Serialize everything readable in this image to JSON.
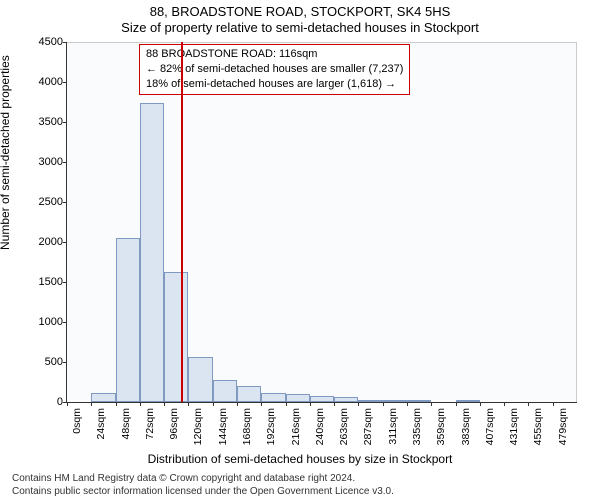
{
  "chart": {
    "type": "histogram",
    "title": "88, BROADSTONE ROAD, STOCKPORT, SK4 5HS",
    "subtitle": "Size of property relative to semi-detached houses in Stockport",
    "ylabel": "Number of semi-detached properties",
    "xlabel": "Distribution of semi-detached houses by size in Stockport",
    "background_color": "#fafbfd",
    "bar_fill": "#dbe5f1",
    "bar_border": "#7f99c1",
    "marker_line_color": "#cc0000",
    "marker_x_index": 4.7,
    "ylim": [
      0,
      4500
    ],
    "ytick_step": 500,
    "x_categories": [
      "0sqm",
      "24sqm",
      "48sqm",
      "72sqm",
      "96sqm",
      "120sqm",
      "144sqm",
      "168sqm",
      "192sqm",
      "216sqm",
      "240sqm",
      "263sqm",
      "287sqm",
      "311sqm",
      "335sqm",
      "359sqm",
      "383sqm",
      "407sqm",
      "431sqm",
      "455sqm",
      "479sqm"
    ],
    "values": [
      0,
      110,
      2050,
      3740,
      1620,
      560,
      280,
      200,
      110,
      100,
      80,
      60,
      30,
      15,
      5,
      0,
      10,
      0,
      0,
      0,
      0
    ],
    "annotation": {
      "line1": "88 BROADSTONE ROAD: 116sqm",
      "line2": "← 82% of semi-detached houses are smaller (7,237)",
      "line3": "18% of semi-detached houses are larger (1,618) →"
    },
    "footer": {
      "line1": "Contains HM Land Registry data © Crown copyright and database right 2024.",
      "line2": "Contains public sector information licensed under the Open Government Licence v3.0."
    },
    "title_fontsize": 13,
    "label_fontsize": 12,
    "tick_fontsize": 11
  }
}
